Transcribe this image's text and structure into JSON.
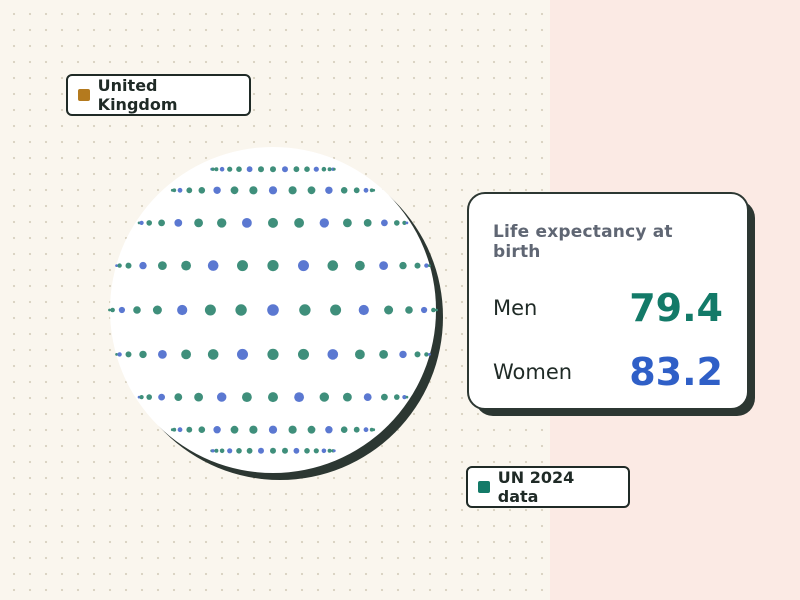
{
  "tags": {
    "country": "United Kingdom",
    "source": "UN 2024 data"
  },
  "card": {
    "title": "Life expectancy at birth",
    "men_label": "Men",
    "men_value": "79.4",
    "women_label": "Women",
    "women_value": "83.2"
  },
  "colors": {
    "country_swatch": "#b47a1e",
    "source_swatch": "#137a68",
    "men": "#137a68",
    "women": "#2f5fc7",
    "men_dot": "#3f8f7b",
    "women_dot": "#5b78d1"
  }
}
